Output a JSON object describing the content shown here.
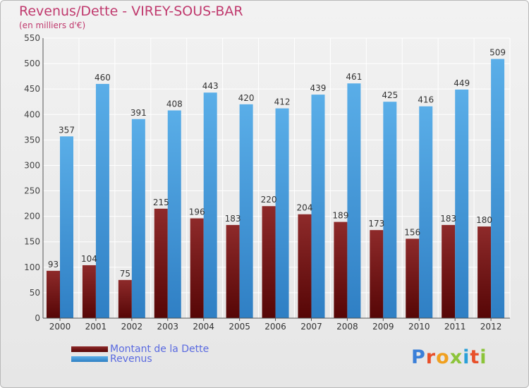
{
  "chart_data": {
    "type": "bar",
    "title": "Revenus/Dette - VIREY-SOUS-BAR",
    "subtitle": "(en milliers d'€)",
    "categories": [
      "2000",
      "2001",
      "2002",
      "2003",
      "2004",
      "2005",
      "2006",
      "2007",
      "2008",
      "2009",
      "2010",
      "2011",
      "2012"
    ],
    "series": [
      {
        "name": "Montant de la Dette",
        "color": "#7a1818",
        "values": [
          93,
          104,
          75,
          215,
          196,
          183,
          220,
          204,
          189,
          173,
          156,
          183,
          180
        ]
      },
      {
        "name": "Revenus",
        "color": "#4a9fe0",
        "values": [
          357,
          460,
          391,
          408,
          443,
          420,
          412,
          439,
          461,
          425,
          416,
          449,
          509
        ]
      }
    ],
    "ylim": [
      0,
      550
    ],
    "ytick_step": 50,
    "grid": true,
    "legend_position": "bottom-left"
  },
  "brand": {
    "letters": [
      {
        "char": "P",
        "color": "#3a7fd8"
      },
      {
        "char": "r",
        "color": "#e8502a"
      },
      {
        "char": "o",
        "color": "#f0a020"
      },
      {
        "char": "x",
        "color": "#8cc43a"
      },
      {
        "char": "i",
        "color": "#2aa0d8"
      },
      {
        "char": "t",
        "color": "#e8502a"
      },
      {
        "char": "i",
        "color": "#8cc43a"
      }
    ]
  }
}
